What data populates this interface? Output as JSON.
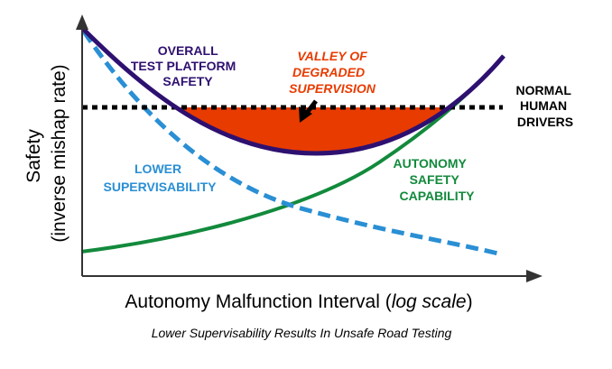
{
  "colors": {
    "overall": "#2e1070",
    "valley": "#e83b00",
    "lower": "#2a8fd4",
    "autonomy": "#128a3c",
    "normal": "#000000",
    "axis": "#333333"
  },
  "labels": {
    "overall": [
      "OVERALL",
      "TEST PLATFORM",
      "SAFETY"
    ],
    "valley": [
      "VALLEY OF",
      "DEGRADED",
      "SUPERVISION"
    ],
    "normal": [
      "NORMAL",
      "HUMAN",
      "DRIVERS"
    ],
    "lower": [
      "LOWER",
      "SUPERVISABILITY"
    ],
    "autonomy": [
      "AUTONOMY",
      "SAFETY",
      "CAPABILITY"
    ]
  },
  "axes": {
    "y_line1": "Safety",
    "y_line2": "(inverse mishap rate)",
    "x_prefix": "Autonomy Malfunction Interval (",
    "x_italic": "log scale",
    "x_suffix": ")"
  },
  "caption": "Lower Supervisability Results In Unsafe Road Testing"
}
